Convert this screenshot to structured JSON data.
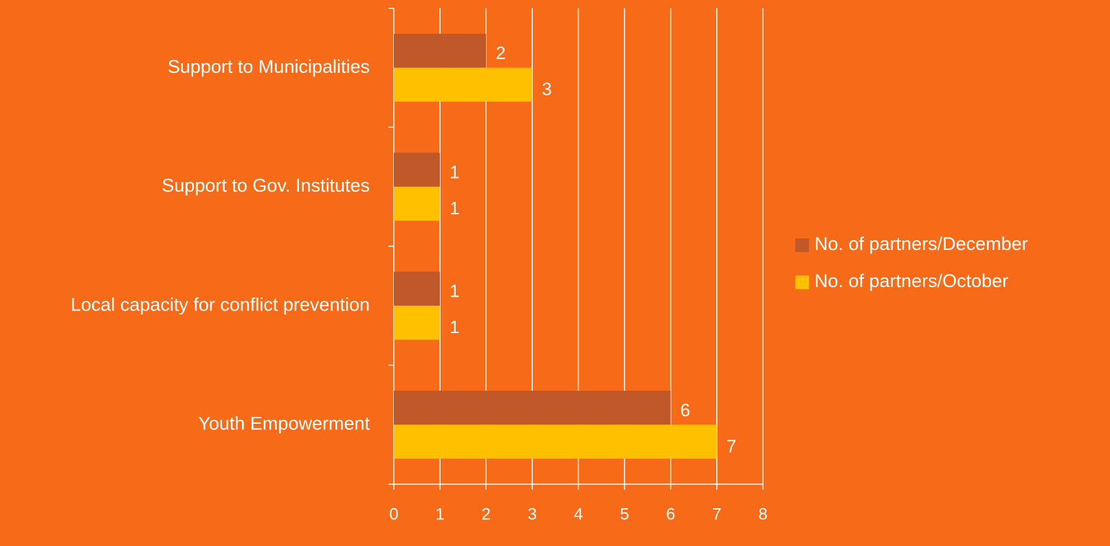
{
  "chart_data": {
    "type": "bar",
    "orientation": "horizontal",
    "categories": [
      "Support to Municipalities",
      "Support to Gov. Institutes",
      "Local capacity for conflict prevention",
      "Youth Empowerment"
    ],
    "series": [
      {
        "name": "No. of partners/December",
        "color": "#c0582a",
        "values": [
          2,
          1,
          1,
          6
        ]
      },
      {
        "name": "No. of partners/October",
        "color": "#ffc000",
        "values": [
          3,
          1,
          1,
          7
        ]
      }
    ],
    "xlim": [
      0,
      8
    ],
    "xticks": [
      0,
      1,
      2,
      3,
      4,
      5,
      6,
      7,
      8
    ],
    "grid": true,
    "legend": "right"
  }
}
